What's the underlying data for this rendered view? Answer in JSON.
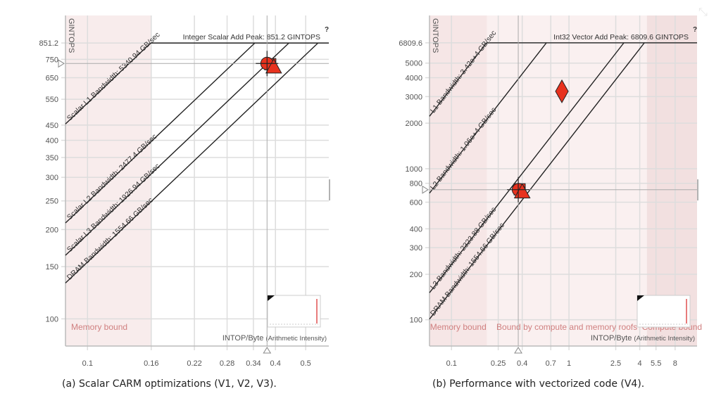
{
  "chart_data": [
    {
      "type": "scatter",
      "id": "a",
      "caption": "(a)  Scalar CARM optimizations (V1, V2, V3).",
      "xlabel": "INTOP/Byte",
      "xlabel_suffix": "(Arithmetic Intensity)",
      "ylabel": "GINTOPS",
      "x_scale": "log",
      "y_scale": "log",
      "xlim": [
        0.085,
        0.593
      ],
      "ylim": [
        81,
        1054
      ],
      "x_ticks": [
        "0.1",
        "0.16",
        "0.22",
        "0.28",
        "0.34",
        "0.4",
        "0.5"
      ],
      "y_ticks": [
        "851.2",
        "750",
        "650",
        "550",
        "450",
        "400",
        "350",
        "300",
        "250",
        "200",
        "150",
        "100"
      ],
      "grid": true,
      "compute_roof": {
        "label": "Integer Scalar Add Peak: 851.2 GINTOPS",
        "value": 851.2
      },
      "memory_roofs": [
        {
          "label": "Scalar L1 Bandwidth: 5340.94 GB/sec",
          "bandwidth": 5340.94
        },
        {
          "label": "Scalar L2 Bandwidth: 2477.4 GB/sec",
          "bandwidth": 2477.4
        },
        {
          "label": "Scalar L3 Bandwidth: 1926.94 GB/sec",
          "bandwidth": 1926.94
        },
        {
          "label": "DRAM Bandwidth: 1554.66 GB/sec",
          "bandwidth": 1554.66
        }
      ],
      "regions": [
        {
          "label": "Memory bound",
          "x_from": 0.085,
          "x_to": 0.16,
          "color": "#f8ecec"
        }
      ],
      "points": [
        {
          "shape": "square",
          "x": 0.385,
          "y": 722
        },
        {
          "shape": "circle",
          "x": 0.376,
          "y": 726
        },
        {
          "shape": "triangle",
          "x": 0.395,
          "y": 712
        }
      ],
      "crosshair": {
        "x": 0.376,
        "y": 726
      },
      "marker_color": "#e8321e"
    },
    {
      "type": "scatter",
      "id": "b",
      "caption": "(b)  Performance with vectorized code (V4).",
      "xlabel": "INTOP/Byte",
      "xlabel_suffix": "(Arithmetic Intensity)",
      "ylabel": "GINTOPS",
      "x_scale": "log",
      "y_scale": "log",
      "xlim": [
        0.065,
        12.3
      ],
      "ylim": [
        67,
        10330
      ],
      "x_ticks": [
        "0.1",
        "0.25",
        "0.4",
        "0.7",
        "1",
        "2.5",
        "4",
        "5.5",
        "8"
      ],
      "y_ticks": [
        "6809.6",
        "5000",
        "4000",
        "3000",
        "2000",
        "1000",
        "800",
        "600",
        "400",
        "300",
        "200",
        "100"
      ],
      "grid": true,
      "compute_roof": {
        "label": "Int32 Vector Add Peak: 6809.6 GINTOPS",
        "value": 6809.6
      },
      "memory_roofs": [
        {
          "label": "L1 Bandwidth: 3.42e+4 GB/sec",
          "bandwidth": 34200
        },
        {
          "label": "L2 Bandwidth: 1.06e+4 GB/sec",
          "bandwidth": 10600
        },
        {
          "label": "L3 Bandwidth: 2323.88 GB/sec",
          "bandwidth": 2323.88
        },
        {
          "label": "DRAM Bandwidth: 1554.66 GB/sec",
          "bandwidth": 1554.66
        }
      ],
      "regions": [
        {
          "label": "Memory bound",
          "x_from": 0.065,
          "x_to": 0.2,
          "color": "#f6e6e6"
        },
        {
          "label": "Bound by compute and memory roofs",
          "x_from": 0.2,
          "x_to": 4.6,
          "color": "#faf0f0"
        },
        {
          "label": "Compute bound",
          "x_from": 4.6,
          "x_to": 12.3,
          "color": "#f2e0e0"
        }
      ],
      "points": [
        {
          "shape": "diamond",
          "x": 0.87,
          "y": 3250
        },
        {
          "shape": "square",
          "x": 0.38,
          "y": 730
        },
        {
          "shape": "circle",
          "x": 0.372,
          "y": 726
        },
        {
          "shape": "triangle",
          "x": 0.4,
          "y": 712
        }
      ],
      "crosshair": {
        "x": 0.37,
        "y": 726
      },
      "marker_color": "#e8321e"
    }
  ]
}
